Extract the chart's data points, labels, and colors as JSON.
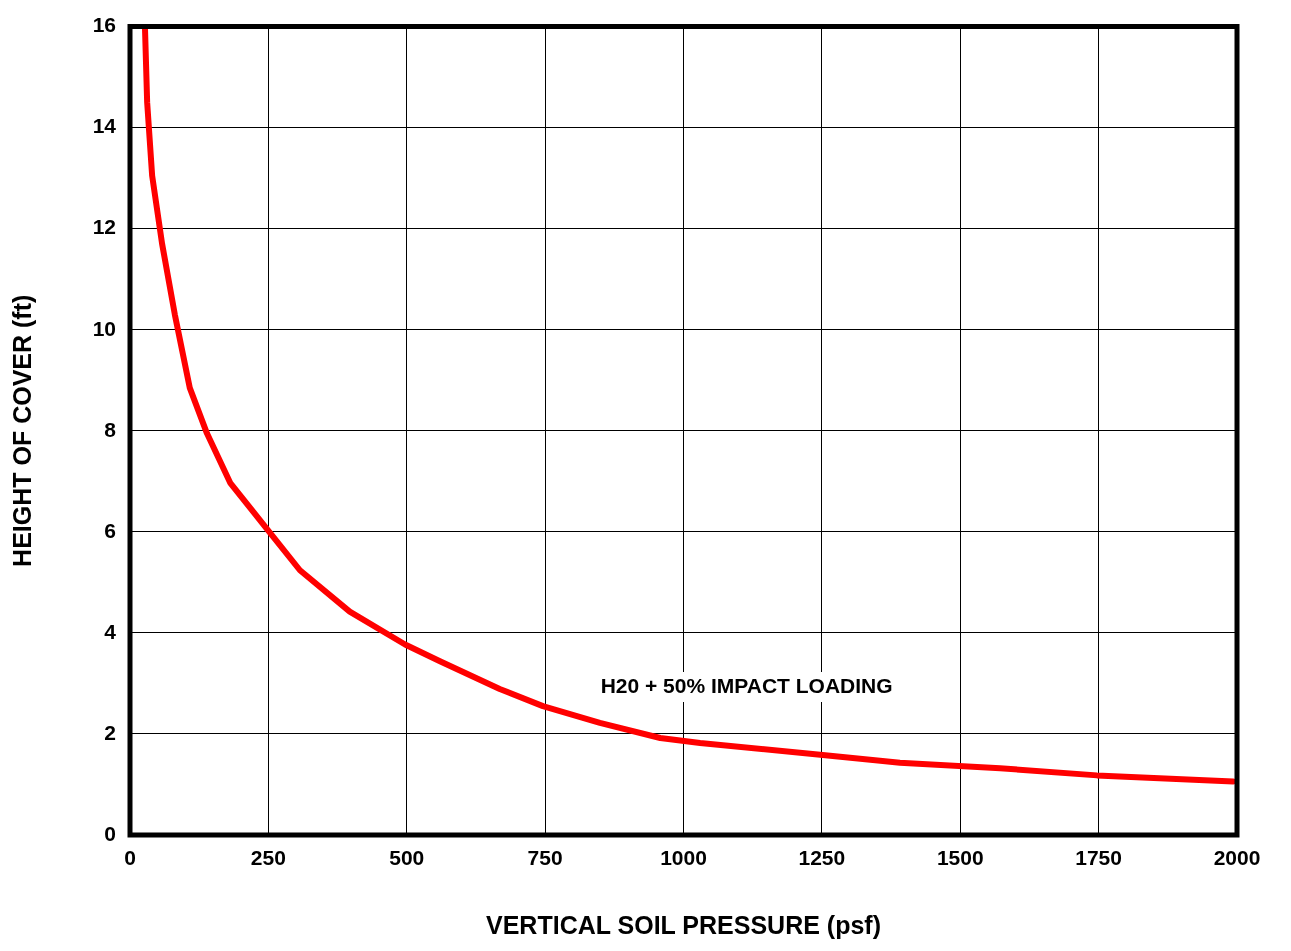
{
  "chart_data": {
    "type": "line",
    "xlabel": "VERTICAL SOIL PRESSURE (psf)",
    "ylabel": "HEIGHT OF COVER (ft)",
    "xlim": [
      0,
      2000
    ],
    "xticks": [
      0,
      250,
      500,
      750,
      1000,
      1250,
      1500,
      1750,
      2000
    ],
    "ylim": [
      0,
      16
    ],
    "yticks": [
      0,
      2,
      4,
      6,
      8,
      10,
      12,
      14,
      16
    ],
    "grid": true,
    "legend": false,
    "marker": "none",
    "line_style": "solid",
    "annotations": [
      "H20 + 50% IMPACT LOADING"
    ],
    "series": [
      {
        "color": "#ff0000",
        "x": [
          27,
          31,
          40,
          58,
          81,
          108,
          139,
          181,
          248,
          307,
          397,
          497,
          560,
          668,
          746,
          849,
          958,
          1030,
          1247,
          1391,
          1572,
          1747,
          1993
        ],
        "values": [
          16,
          14.5,
          13.05,
          11.7,
          10.3,
          8.85,
          7.95,
          6.97,
          6.05,
          5.24,
          4.42,
          3.77,
          3.44,
          2.89,
          2.55,
          2.22,
          1.92,
          1.82,
          1.59,
          1.43,
          1.32,
          1.18,
          1.06
        ]
      }
    ]
  }
}
